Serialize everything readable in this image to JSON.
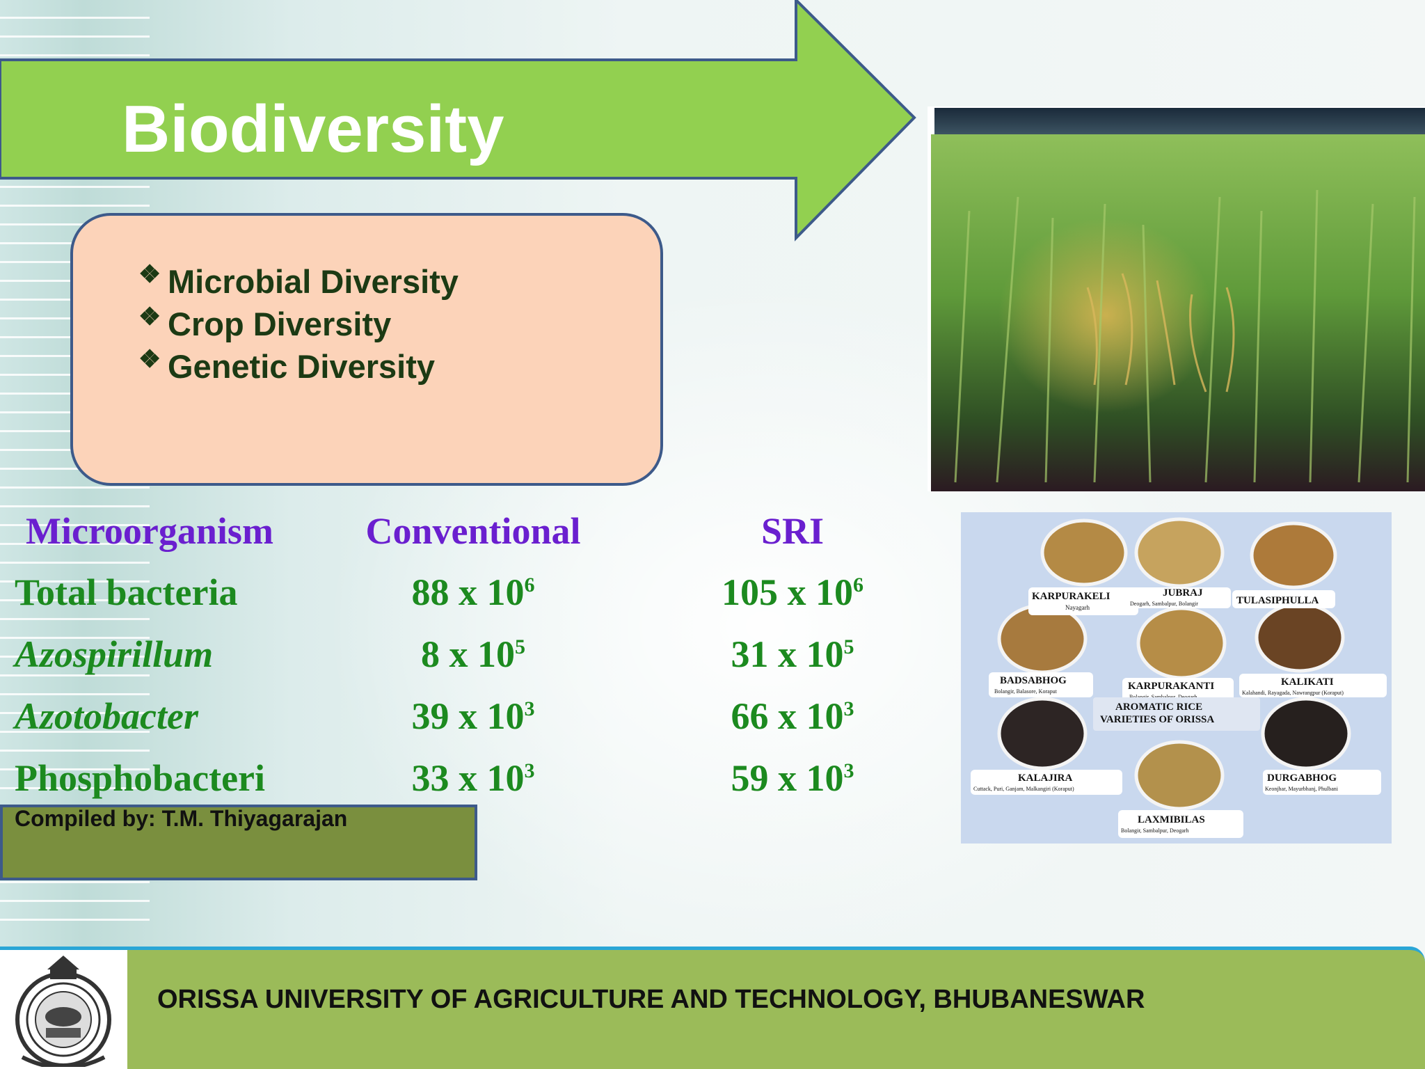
{
  "slide": {
    "title": "Biodiversity"
  },
  "bullets": [
    "Microbial Diversity",
    "Crop Diversity",
    "Genetic Diversity"
  ],
  "table": {
    "headers": [
      "Microorganism",
      "Conventional",
      "SRI"
    ],
    "rows": [
      {
        "name": "Total bacteria",
        "italic": false,
        "conventional_base": "88 x 10",
        "conventional_exp": "6",
        "sri_base": "105 x 10",
        "sri_exp": "6"
      },
      {
        "name": "Azospirillum",
        "italic": true,
        "conventional_base": "8 x 10",
        "conventional_exp": "5",
        "sri_base": "31 x 10",
        "sri_exp": "5"
      },
      {
        "name": "Azotobacter",
        "italic": true,
        "conventional_base": "39 x 10",
        "conventional_exp": "3",
        "sri_base": "66 x 10",
        "sri_exp": "3"
      },
      {
        "name": "Phosphobacteri",
        "italic": false,
        "conventional_base": "33 x 10",
        "conventional_exp": "3",
        "sri_base": "59 x 10",
        "sri_exp": "3"
      }
    ]
  },
  "compiled_by": "Compiled by: T.M. Thiyagarajan",
  "rice_photo_labels": {
    "caption": "AROMATIC RICE VARIETIES OF ORISSA",
    "caption_line1": "AROMATIC RICE",
    "caption_line2": "VARIETIES OF ORISSA",
    "varieties": [
      {
        "name": "KARPURAKELI",
        "place": "Nayagarh"
      },
      {
        "name": "JUBRAJ",
        "place": "Deogarh, Sambalpur, Bolangir"
      },
      {
        "name": "TULASIPHULLA",
        "place": ""
      },
      {
        "name": "BADSABHOG",
        "place": "Bolangir, Balasore, Koraput"
      },
      {
        "name": "KARPURAKANTI",
        "place": "Bolangir, Sambalpur, Deogarh"
      },
      {
        "name": "KALIKATI",
        "place": "Kalahandi, Rayagada, Nawrangpur (Koraput)"
      },
      {
        "name": "KALAJIRA",
        "place": "Cuttack, Puri, Ganjam, Malkangiri (Koraput)"
      },
      {
        "name": "DURGABHOG",
        "place": "Keonjhar, Mayurbhanj, Phulbani"
      },
      {
        "name": "LAXMIBILAS",
        "place": "Bolangir, Sambalpur, Deogarh"
      }
    ]
  },
  "footer": {
    "institution": "ORISSA UNIVERSITY OF AGRICULTURE AND TECHNOLOGY, BHUBANESWAR"
  },
  "colors": {
    "arrow_fill": "#92d050",
    "arrow_border": "#3d5a8a",
    "box_fill": "#fcd3b9",
    "header_text": "#6a1fcf",
    "table_text": "#1c8a1f",
    "compiled_bar": "#7a8f3e",
    "footer_bar": "#9bbb59",
    "footer_border": "#2aa6d6"
  }
}
